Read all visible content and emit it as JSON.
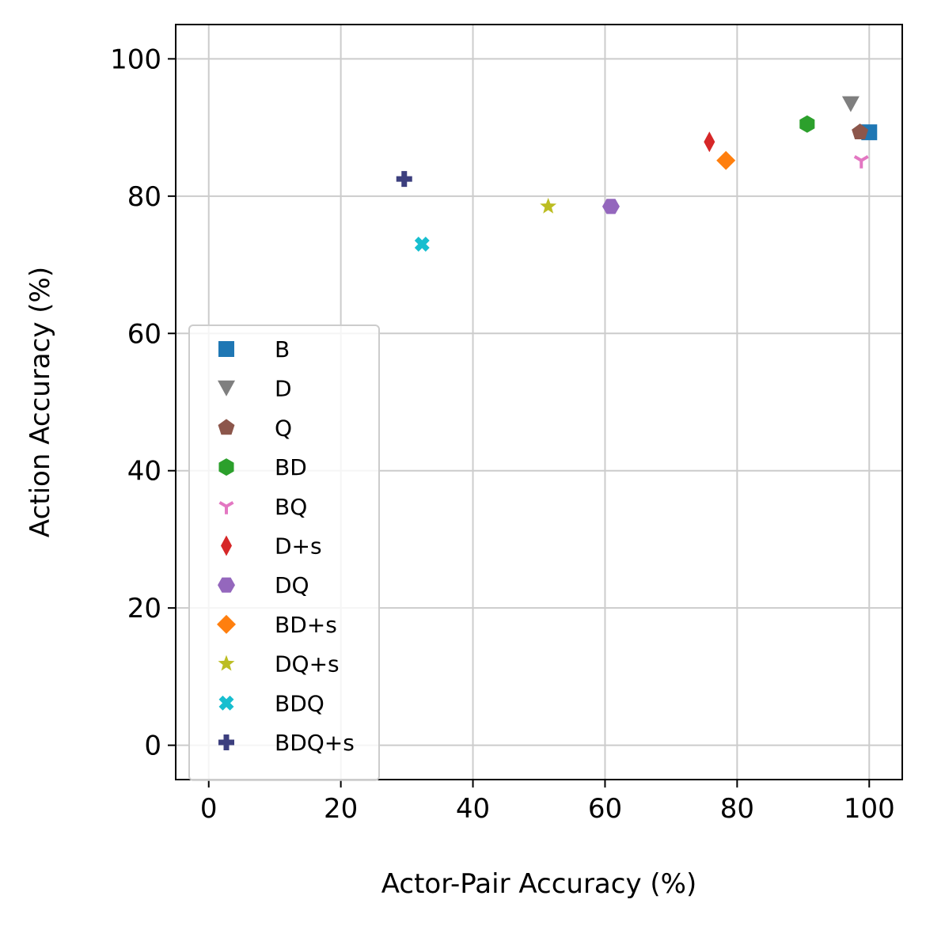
{
  "chart_data": {
    "type": "scatter",
    "title": "",
    "xlabel": "Actor-Pair Accuracy (%)",
    "ylabel": "Action Accuracy (%)",
    "xlim": [
      -5,
      105
    ],
    "ylim": [
      -5,
      105
    ],
    "xticks": [
      0,
      20,
      40,
      60,
      80,
      100
    ],
    "yticks": [
      0,
      20,
      40,
      60,
      80,
      100
    ],
    "grid": true,
    "legend_position": "lower-left",
    "series": [
      {
        "name": "B",
        "marker": "square",
        "color": "#1f77b4",
        "x": [
          100.0
        ],
        "y": [
          89.3
        ]
      },
      {
        "name": "D",
        "marker": "triangle-down",
        "color": "#7f7f7f",
        "x": [
          97.2
        ],
        "y": [
          93.4
        ]
      },
      {
        "name": "Q",
        "marker": "pentagon",
        "color": "#8c564b",
        "x": [
          98.6
        ],
        "y": [
          89.3
        ]
      },
      {
        "name": "BD",
        "marker": "hexagon",
        "color": "#2ca02c",
        "x": [
          90.6
        ],
        "y": [
          90.5
        ]
      },
      {
        "name": "BQ",
        "marker": "tri-down",
        "color": "#e377c2",
        "x": [
          98.8
        ],
        "y": [
          85.2
        ]
      },
      {
        "name": "D+s",
        "marker": "thin-diamond",
        "color": "#d62728",
        "x": [
          75.8
        ],
        "y": [
          87.9
        ]
      },
      {
        "name": "DQ",
        "marker": "hexagon-flat",
        "color": "#9467bd",
        "x": [
          60.9
        ],
        "y": [
          78.5
        ]
      },
      {
        "name": "BD+s",
        "marker": "diamond",
        "color": "#ff7f0e",
        "x": [
          78.3
        ],
        "y": [
          85.2
        ]
      },
      {
        "name": "DQ+s",
        "marker": "star",
        "color": "#bcbd22",
        "x": [
          51.4
        ],
        "y": [
          78.5
        ]
      },
      {
        "name": "BDQ",
        "marker": "x-filled",
        "color": "#17becf",
        "x": [
          32.3
        ],
        "y": [
          73.0
        ]
      },
      {
        "name": "BDQ+s",
        "marker": "plus-filled",
        "color": "#3c3f7e",
        "x": [
          29.6
        ],
        "y": [
          82.5
        ]
      }
    ]
  }
}
